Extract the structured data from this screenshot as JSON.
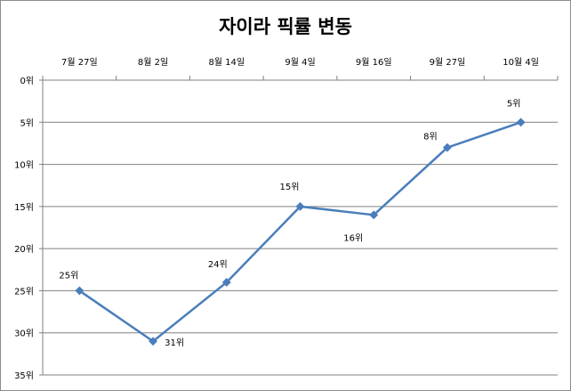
{
  "chart_data": {
    "type": "line",
    "title": "자이라 픽률 변동",
    "categories": [
      "7월 27일",
      "8월 2일",
      "8월 14일",
      "9월 4일",
      "9월 16일",
      "9월 27일",
      "10월 4일"
    ],
    "series": [
      {
        "values": [
          25,
          31,
          24,
          15,
          16,
          8,
          5
        ],
        "data_labels": [
          "25위",
          "31위",
          "24위",
          "15위",
          "16위",
          "8위",
          "5위"
        ],
        "color": "#4a7ebb"
      }
    ],
    "y_axis": {
      "ylim": [
        0,
        35
      ],
      "reversed": true,
      "ticks": [
        0,
        5,
        10,
        15,
        20,
        25,
        30,
        35
      ],
      "tick_labels": [
        "0위",
        "5위",
        "10위",
        "15위",
        "20위",
        "25위",
        "30위",
        "35위"
      ]
    },
    "x_axis_position": "top",
    "grid": true,
    "legend": "none"
  }
}
